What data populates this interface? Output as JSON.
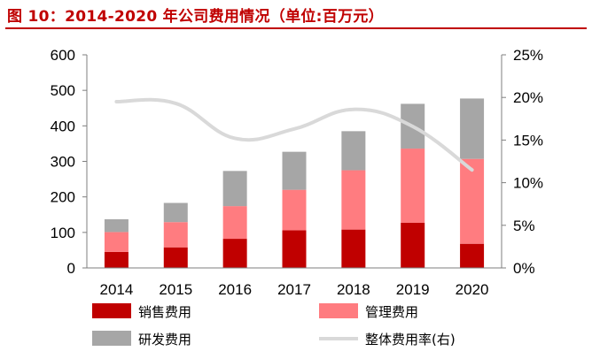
{
  "title": "图 10：2014-2020 年公司费用情况（单位:百万元）",
  "colors": {
    "title": "#c00000",
    "sales": "#c00000",
    "management": "#ff7c80",
    "rnd": "#a6a6a6",
    "ratio": "#d9d9d9"
  },
  "chart_data": {
    "type": "bar",
    "stacked": true,
    "categories": [
      "2014",
      "2015",
      "2016",
      "2017",
      "2018",
      "2019",
      "2020"
    ],
    "series": [
      {
        "name": "销售费用",
        "values": [
          45,
          58,
          82,
          106,
          108,
          127,
          68
        ]
      },
      {
        "name": "管理费用",
        "values": [
          56,
          71,
          92,
          114,
          167,
          209,
          239
        ]
      },
      {
        "name": "研发费用",
        "values": [
          36,
          54,
          99,
          107,
          110,
          126,
          170
        ]
      }
    ],
    "line_series": {
      "name": "整体费用率(右)",
      "axis": "right",
      "values": [
        0.195,
        0.193,
        0.152,
        0.163,
        0.186,
        0.166,
        0.115
      ]
    },
    "ylim": [
      0,
      600
    ],
    "yticks": [
      0,
      100,
      200,
      300,
      400,
      500,
      600
    ],
    "y2lim": [
      0,
      0.25
    ],
    "y2ticks": [
      "0%",
      "5%",
      "10%",
      "15%",
      "20%",
      "25%"
    ],
    "grid": false,
    "legend": "bottom"
  }
}
